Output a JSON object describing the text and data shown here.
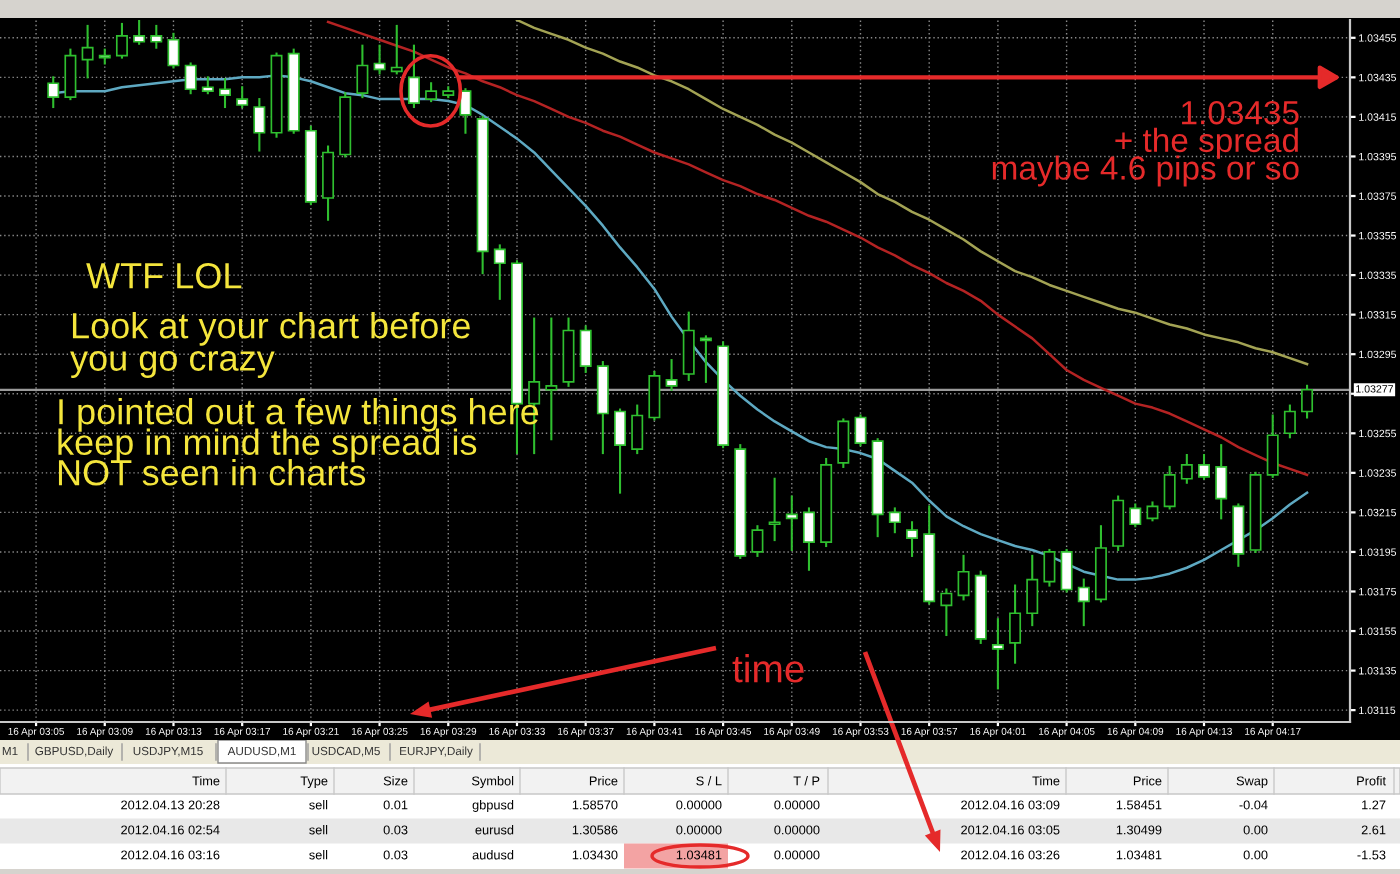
{
  "chart_data": [
    {
      "type": "candlestick",
      "categories": [
        "16 Apr 03:05",
        null,
        null,
        null,
        "16 Apr 03:09",
        null,
        null,
        null,
        "16 Apr 03:13",
        null,
        null,
        null,
        "16 Apr 03:17",
        null,
        null,
        null,
        "16 Apr 03:21",
        null,
        null,
        null,
        "16 Apr 03:25",
        null,
        null,
        null,
        "16 Apr 03:29",
        null,
        null,
        null,
        "16 Apr 03:33",
        null,
        null,
        null,
        "16 Apr 03:37",
        null,
        null,
        null,
        "16 Apr 03:41",
        null,
        null,
        null,
        "16 Apr 03:45",
        null,
        null,
        null,
        "16 Apr 03:49",
        null,
        null,
        null,
        "16 Apr 03:53",
        null,
        null,
        null,
        "16 Apr 03:57",
        null,
        null,
        null,
        "16 Apr 04:01",
        null,
        null,
        null,
        "16 Apr 04:05",
        null,
        null,
        null,
        "16 Apr 04:09",
        null,
        null,
        null,
        "16 Apr 04:13",
        null,
        null,
        null,
        "16 Apr 04:17",
        null,
        null
      ],
      "color": "#2fbf2f",
      "ohlc": [
        null,
        [
          1.03432,
          1.03435,
          1.0342,
          1.03425
        ],
        [
          1.03425,
          1.03449,
          1.03424,
          1.03446
        ],
        [
          1.03444,
          1.03461,
          1.03435,
          1.0345
        ],
        [
          1.03446,
          1.03449,
          1.03442,
          1.03445
        ],
        [
          1.03446,
          1.03462,
          1.03445,
          1.03456
        ],
        [
          1.03456,
          1.03464,
          1.03452,
          1.03453
        ],
        [
          1.03456,
          1.03461,
          1.0345,
          1.03453
        ],
        [
          1.03454,
          1.03457,
          1.0344,
          1.03441
        ],
        [
          1.03441,
          1.03442,
          1.03427,
          1.03429
        ],
        [
          1.0343,
          1.03435,
          1.03427,
          1.03428
        ],
        [
          1.03429,
          1.03434,
          1.0342,
          1.03426
        ],
        [
          1.03424,
          1.0343,
          1.0342,
          1.03421
        ],
        [
          1.0342,
          1.03424,
          1.03398,
          1.03407
        ],
        [
          1.03407,
          1.03447,
          1.03405,
          1.03446
        ],
        [
          1.03447,
          1.03449,
          1.03407,
          1.03408
        ],
        [
          1.03408,
          1.0341,
          1.03371,
          1.03372
        ],
        [
          1.03374,
          1.034,
          1.03363,
          1.03397
        ],
        [
          1.03396,
          1.03427,
          1.03395,
          1.03425
        ],
        [
          1.03427,
          1.03451,
          1.03425,
          1.03441
        ],
        [
          1.03442,
          1.03451,
          1.03437,
          1.03439
        ],
        [
          1.03438,
          1.03461,
          1.03437,
          1.0344
        ],
        [
          1.03435,
          1.03451,
          1.0342,
          1.03422
        ],
        [
          1.03424,
          1.03432,
          1.03423,
          1.03428
        ],
        [
          1.03426,
          1.0343,
          1.03425,
          1.03428
        ],
        [
          1.03428,
          1.03429,
          1.03407,
          1.03416
        ],
        [
          1.03414,
          1.03415,
          1.03336,
          1.03347
        ],
        [
          1.03348,
          1.0335,
          1.03323,
          1.03341
        ],
        [
          1.03341,
          1.03342,
          1.03245,
          1.0327
        ],
        [
          1.0327,
          1.03313,
          1.03245,
          1.03281
        ],
        [
          1.03277,
          1.03313,
          1.03252,
          1.03279
        ],
        [
          1.03281,
          1.03313,
          1.03279,
          1.03307
        ],
        [
          1.03307,
          1.03309,
          1.03286,
          1.03289
        ],
        [
          1.03289,
          1.03291,
          1.03245,
          1.03265
        ],
        [
          1.03266,
          1.03267,
          1.03225,
          1.03249
        ],
        [
          1.03247,
          1.03269,
          1.03245,
          1.03264
        ],
        [
          1.03263,
          1.03286,
          1.03262,
          1.03284
        ],
        [
          1.03282,
          1.03292,
          1.03277,
          1.03279
        ],
        [
          1.03285,
          1.03316,
          1.03282,
          1.03307
        ],
        [
          1.03303,
          1.03304,
          1.03281,
          1.03302
        ],
        [
          1.03299,
          1.03301,
          1.03248,
          1.03249
        ],
        [
          1.03247,
          1.03249,
          1.03192,
          1.03193
        ],
        [
          1.03195,
          1.03208,
          1.03193,
          1.03206
        ],
        [
          1.03209,
          1.03232,
          1.03201,
          1.0321
        ],
        [
          1.03214,
          1.03223,
          1.03196,
          1.03212
        ],
        [
          1.03215,
          1.03217,
          1.03186,
          1.032
        ],
        [
          1.032,
          1.03242,
          1.03198,
          1.03239
        ],
        [
          1.0324,
          1.03262,
          1.03238,
          1.03261
        ],
        [
          1.03263,
          1.03264,
          1.03249,
          1.0325
        ],
        [
          1.03251,
          1.03252,
          1.03203,
          1.03214
        ],
        [
          1.03215,
          1.03217,
          1.03205,
          1.0321
        ],
        [
          1.03206,
          1.0321,
          1.03193,
          1.03202
        ],
        [
          1.03204,
          1.03218,
          1.03169,
          1.0317
        ],
        [
          1.03168,
          1.03176,
          1.03153,
          1.03174
        ],
        [
          1.03173,
          1.03193,
          1.03171,
          1.03185
        ],
        [
          1.03183,
          1.03185,
          1.03149,
          1.03151
        ],
        [
          1.03148,
          1.03161,
          1.03126,
          1.03146
        ],
        [
          1.03149,
          1.03178,
          1.03139,
          1.03164
        ],
        [
          1.03164,
          1.03193,
          1.03158,
          1.03181
        ],
        [
          1.0318,
          1.03196,
          1.03178,
          1.03195
        ],
        [
          1.03195,
          1.03196,
          1.03175,
          1.03176
        ],
        [
          1.03177,
          1.03181,
          1.03158,
          1.0317
        ],
        [
          1.03171,
          1.03208,
          1.0317,
          1.03197
        ],
        [
          1.03198,
          1.03223,
          1.03196,
          1.03221
        ],
        [
          1.03217,
          1.03219,
          1.03208,
          1.03209
        ],
        [
          1.03212,
          1.0322,
          1.03211,
          1.03218
        ],
        [
          1.03218,
          1.03238,
          1.03217,
          1.03234
        ],
        [
          1.03232,
          1.03244,
          1.0323,
          1.03239
        ],
        [
          1.03239,
          1.03244,
          1.03232,
          1.03233
        ],
        [
          1.03238,
          1.03249,
          1.03212,
          1.03222
        ],
        [
          1.03218,
          1.03219,
          1.03188,
          1.03194
        ],
        [
          1.03196,
          1.03235,
          1.03195,
          1.03234
        ],
        [
          1.03234,
          1.03264,
          1.03233,
          1.03254
        ],
        [
          1.03255,
          1.03269,
          1.03253,
          1.03266
        ],
        [
          1.03266,
          1.03279,
          1.03263,
          1.03277
        ]
      ],
      "colors": [
        null,
        "#ffffff",
        "#000000",
        "#000000",
        "#ffffff",
        "#000000",
        "#ffffff",
        "#ffffff",
        "#ffffff",
        "#ffffff",
        "#ffffff",
        "#ffffff",
        "#ffffff",
        "#ffffff",
        "#000000",
        "#ffffff",
        "#ffffff",
        "#000000",
        "#000000",
        "#000000",
        "#ffffff",
        "#000000",
        "#ffffff",
        "#000000",
        "#000000",
        "#ffffff",
        "#ffffff",
        "#ffffff",
        "#ffffff",
        "#000000",
        "#000000",
        "#000000",
        "#ffffff",
        "#ffffff",
        "#ffffff",
        "#000000",
        "#000000",
        "#ffffff",
        "#000000",
        "#ffffff",
        "#ffffff",
        "#ffffff",
        "#000000",
        "#000000",
        "#ffffff",
        "#ffffff",
        "#000000",
        "#000000",
        "#ffffff",
        "#ffffff",
        "#ffffff",
        "#ffffff",
        "#ffffff",
        "#000000",
        "#000000",
        "#ffffff",
        "#ffffff",
        "#000000",
        "#000000",
        "#000000",
        "#ffffff",
        "#ffffff",
        "#000000",
        "#000000",
        "#ffffff",
        "#000000",
        "#000000",
        "#000000",
        "#ffffff",
        "#ffffff",
        "#ffffff",
        "#000000",
        "#000000",
        "#000000",
        "#000000"
      ],
      "series": [
        {
          "type": "line",
          "color": "#5ea9c2",
          "values": [
            null,
            1.03427,
            1.03428,
            1.03428,
            1.03428,
            1.0343,
            1.03431,
            1.03432,
            1.03433,
            1.03434,
            1.03434,
            1.03434,
            1.03435,
            1.03435,
            1.03436,
            1.03435,
            1.03433,
            1.0343,
            1.03427,
            1.03426,
            1.03424,
            1.03424,
            1.03424,
            1.03424,
            1.03423,
            1.03421,
            1.03416,
            1.0341,
            1.03404,
            1.03397,
            1.03388,
            1.03379,
            1.0337,
            1.0336,
            1.03349,
            1.03339,
            1.03328,
            1.03314,
            1.03302,
            1.03291,
            1.03282,
            1.03274,
            1.03267,
            1.03261,
            1.03256,
            1.03251,
            1.03248,
            1.03247,
            1.03245,
            1.03242,
            1.03236,
            1.0323,
            1.03221,
            1.03213,
            1.03208,
            1.03204,
            1.03201,
            1.03198,
            1.03196,
            1.03193,
            1.03189,
            1.03185,
            1.03183,
            1.03181,
            1.03181,
            1.03182,
            1.03184,
            1.03187,
            1.03191,
            1.03196,
            1.03201,
            1.03206,
            1.03212,
            1.03219,
            1.03225
          ]
        },
        {
          "type": "line",
          "color": "#b42323",
          "values": [
            null,
            null,
            null,
            null,
            null,
            null,
            null,
            null,
            null,
            null,
            null,
            null,
            null,
            null,
            null,
            null,
            null,
            1.03463,
            1.0346,
            1.03457,
            1.03454,
            1.03451,
            1.03448,
            1.03444,
            1.0344,
            1.03437,
            1.03433,
            1.0343,
            1.03426,
            1.03423,
            1.03419,
            1.03415,
            1.03412,
            1.03408,
            1.03405,
            1.03401,
            1.03397,
            1.03394,
            1.03391,
            1.03387,
            1.03383,
            1.0338,
            1.03376,
            1.03373,
            1.03369,
            1.03365,
            1.03362,
            1.03358,
            1.03354,
            1.03349,
            1.03345,
            1.0334,
            1.03336,
            1.03331,
            1.03327,
            1.03322,
            1.03315,
            1.03309,
            1.03303,
            1.03295,
            1.03287,
            1.03282,
            1.03278,
            1.03274,
            1.0327,
            1.03268,
            1.03265,
            1.03261,
            1.03257,
            1.03253,
            1.03248,
            1.03244,
            1.0324,
            1.03237,
            1.03234
          ]
        },
        {
          "type": "line",
          "color": "#a3a354",
          "values": [
            null,
            null,
            null,
            null,
            null,
            null,
            null,
            null,
            null,
            null,
            null,
            null,
            null,
            null,
            null,
            null,
            null,
            null,
            null,
            null,
            null,
            null,
            null,
            null,
            null,
            null,
            null,
            null,
            1.03464,
            1.0346,
            1.03457,
            1.03454,
            1.0345,
            1.03447,
            1.03443,
            1.0344,
            1.03436,
            1.03433,
            1.03429,
            1.03424,
            1.03419,
            1.03415,
            1.03411,
            1.03406,
            1.03402,
            1.03397,
            1.03392,
            1.03387,
            1.03382,
            1.03376,
            1.03372,
            1.03367,
            1.03363,
            1.03358,
            1.03353,
            1.03347,
            1.03342,
            1.03337,
            1.03334,
            1.0333,
            1.03327,
            1.03324,
            1.03321,
            1.03318,
            1.03316,
            1.03313,
            1.0331,
            1.03308,
            1.03305,
            1.03303,
            1.03301,
            1.03298,
            1.03296,
            1.03293,
            1.0329
          ]
        }
      ],
      "ylim": [
        1.03109,
        1.03464
      ],
      "yticks": [
        1.03115,
        1.03135,
        1.03155,
        1.03175,
        1.03195,
        1.03215,
        1.03235,
        1.03255,
        {
          "value": 1.03275,
          "label": null
        },
        1.03295,
        1.03315,
        1.03335,
        1.03355,
        1.03375,
        1.03395,
        1.03415,
        1.03435,
        1.03455
      ],
      "grid": true,
      "ref_lines": [
        {
          "axis": "y",
          "value": 1.03435,
          "color": "#e52a2a"
        },
        {
          "axis": "y",
          "value": 1.03277,
          "label": "1.03277",
          "color": "#9a9a9a"
        }
      ],
      "annotations": [
        "WTF LOL",
        "Look at your chart before\nyou go crazy",
        "I pointed out a few things here\nkeep in mind the spread is\nNOT seen in charts",
        "1.03435\n+ the spread\nmaybe 4.6 pips or so",
        "time"
      ]
    },
    {
      "type": "other",
      "categories": [
        "Time",
        "Type",
        "Size",
        "Symbol",
        "Price",
        "S / L",
        "T / P",
        "Time",
        "Price",
        "Swap",
        "Profit"
      ],
      "cell_labels": [
        [
          "2012.04.13 20:28",
          "sell",
          "0.01",
          "gbpusd",
          "1.58570",
          "0.00000",
          "0.00000",
          "2012.04.16 03:09",
          "1.58451",
          "-0.04",
          "1.27"
        ],
        [
          "2012.04.16 02:54",
          "sell",
          "0.03",
          "eurusd",
          "1.30586",
          "0.00000",
          "0.00000",
          "2012.04.16 03:05",
          "1.30499",
          "0.00",
          "2.61"
        ],
        [
          "2012.04.16 03:16",
          "sell",
          "0.03",
          "audusd",
          "1.03430",
          "1.03481",
          "0.00000",
          "2012.04.16 03:26",
          "1.03481",
          "0.00",
          "-1.53"
        ]
      ],
      "annotations": [
        "M1",
        "GBPUSD,Daily",
        "USDJPY,M15",
        "AUDUSD,M1",
        "USDCAD,M5",
        "EURJPY,Daily"
      ]
    }
  ]
}
